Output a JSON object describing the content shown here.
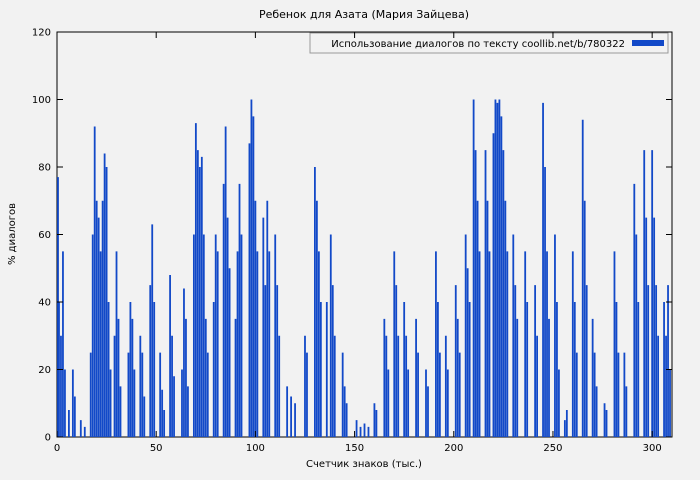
{
  "title": "Ребенок для Азата (Мария Зайцева)",
  "legend": {
    "label": "Использование диалогов по тексту coollib.net/b/780322"
  },
  "axes": {
    "x_label": "Счетчик знаков (тыс.)",
    "y_label": "% диалогов"
  },
  "colors": {
    "bar": "#1249c8",
    "plot_border": "#000000",
    "legend_border": "#999999",
    "background": "#f2f2f2"
  },
  "chart_data": {
    "type": "bar",
    "title": "Ребенок для Азата (Мария Зайцева)",
    "xlabel": "Счетчик знаков (тыс.)",
    "ylabel": "% диалогов",
    "xlim": [
      0,
      310
    ],
    "ylim": [
      0,
      120
    ],
    "x_ticks": [
      0,
      50,
      100,
      150,
      200,
      250,
      300
    ],
    "y_ticks": [
      0,
      20,
      40,
      60,
      80,
      100,
      120
    ],
    "grid": false,
    "legend_position": "top-right",
    "legend_entries": [
      "Использование диалогов по тексту coollib.net/b/780322"
    ],
    "bar_color": "#1249c8",
    "points": [
      [
        0.5,
        77
      ],
      [
        1,
        40
      ],
      [
        2,
        30
      ],
      [
        3,
        55
      ],
      [
        4,
        20
      ],
      [
        6,
        8
      ],
      [
        8,
        20
      ],
      [
        9,
        12
      ],
      [
        12,
        5
      ],
      [
        14,
        3
      ],
      [
        17,
        25
      ],
      [
        18,
        60
      ],
      [
        19,
        92
      ],
      [
        20,
        70
      ],
      [
        21,
        65
      ],
      [
        22,
        55
      ],
      [
        23,
        70
      ],
      [
        24,
        84
      ],
      [
        25,
        80
      ],
      [
        26,
        40
      ],
      [
        27,
        20
      ],
      [
        29,
        30
      ],
      [
        30,
        55
      ],
      [
        31,
        35
      ],
      [
        32,
        15
      ],
      [
        36,
        25
      ],
      [
        37,
        40
      ],
      [
        38,
        35
      ],
      [
        39,
        20
      ],
      [
        42,
        30
      ],
      [
        43,
        25
      ],
      [
        44,
        12
      ],
      [
        47,
        45
      ],
      [
        48,
        63
      ],
      [
        49,
        40
      ],
      [
        52,
        25
      ],
      [
        53,
        14
      ],
      [
        54,
        8
      ],
      [
        57,
        48
      ],
      [
        58,
        30
      ],
      [
        59,
        18
      ],
      [
        63,
        20
      ],
      [
        64,
        44
      ],
      [
        65,
        35
      ],
      [
        66,
        15
      ],
      [
        69,
        60
      ],
      [
        70,
        93
      ],
      [
        71,
        85
      ],
      [
        72,
        80
      ],
      [
        73,
        83
      ],
      [
        74,
        60
      ],
      [
        75,
        35
      ],
      [
        76,
        25
      ],
      [
        79,
        40
      ],
      [
        80,
        60
      ],
      [
        81,
        55
      ],
      [
        84,
        75
      ],
      [
        85,
        92
      ],
      [
        86,
        65
      ],
      [
        87,
        50
      ],
      [
        90,
        35
      ],
      [
        91,
        55
      ],
      [
        92,
        75
      ],
      [
        93,
        60
      ],
      [
        97,
        87
      ],
      [
        98,
        100
      ],
      [
        99,
        95
      ],
      [
        100,
        70
      ],
      [
        101,
        55
      ],
      [
        104,
        65
      ],
      [
        105,
        45
      ],
      [
        106,
        70
      ],
      [
        107,
        55
      ],
      [
        110,
        60
      ],
      [
        111,
        45
      ],
      [
        112,
        30
      ],
      [
        116,
        15
      ],
      [
        118,
        12
      ],
      [
        120,
        10
      ],
      [
        125,
        30
      ],
      [
        126,
        25
      ],
      [
        130,
        80
      ],
      [
        131,
        70
      ],
      [
        132,
        55
      ],
      [
        133,
        40
      ],
      [
        136,
        40
      ],
      [
        138,
        60
      ],
      [
        139,
        45
      ],
      [
        140,
        30
      ],
      [
        144,
        25
      ],
      [
        145,
        15
      ],
      [
        146,
        10
      ],
      [
        151,
        5
      ],
      [
        153,
        3
      ],
      [
        155,
        4
      ],
      [
        157,
        3
      ],
      [
        160,
        10
      ],
      [
        161,
        8
      ],
      [
        165,
        35
      ],
      [
        166,
        30
      ],
      [
        167,
        20
      ],
      [
        170,
        55
      ],
      [
        171,
        45
      ],
      [
        172,
        30
      ],
      [
        175,
        40
      ],
      [
        176,
        30
      ],
      [
        177,
        20
      ],
      [
        181,
        35
      ],
      [
        182,
        25
      ],
      [
        186,
        20
      ],
      [
        187,
        15
      ],
      [
        191,
        55
      ],
      [
        192,
        40
      ],
      [
        193,
        25
      ],
      [
        196,
        30
      ],
      [
        197,
        20
      ],
      [
        201,
        45
      ],
      [
        202,
        35
      ],
      [
        203,
        25
      ],
      [
        206,
        60
      ],
      [
        207,
        50
      ],
      [
        208,
        40
      ],
      [
        210,
        100
      ],
      [
        211,
        85
      ],
      [
        212,
        70
      ],
      [
        213,
        55
      ],
      [
        216,
        85
      ],
      [
        217,
        70
      ],
      [
        218,
        55
      ],
      [
        220,
        90
      ],
      [
        221,
        100
      ],
      [
        222,
        99
      ],
      [
        223,
        100
      ],
      [
        224,
        95
      ],
      [
        225,
        85
      ],
      [
        226,
        70
      ],
      [
        227,
        55
      ],
      [
        230,
        60
      ],
      [
        231,
        45
      ],
      [
        232,
        35
      ],
      [
        236,
        55
      ],
      [
        237,
        40
      ],
      [
        241,
        45
      ],
      [
        242,
        30
      ],
      [
        245,
        99
      ],
      [
        246,
        80
      ],
      [
        247,
        55
      ],
      [
        248,
        35
      ],
      [
        251,
        60
      ],
      [
        252,
        40
      ],
      [
        253,
        20
      ],
      [
        256,
        5
      ],
      [
        257,
        8
      ],
      [
        260,
        55
      ],
      [
        261,
        40
      ],
      [
        262,
        25
      ],
      [
        265,
        94
      ],
      [
        266,
        70
      ],
      [
        267,
        45
      ],
      [
        270,
        35
      ],
      [
        271,
        25
      ],
      [
        272,
        15
      ],
      [
        276,
        10
      ],
      [
        277,
        8
      ],
      [
        281,
        55
      ],
      [
        282,
        40
      ],
      [
        283,
        25
      ],
      [
        286,
        25
      ],
      [
        287,
        15
      ],
      [
        291,
        75
      ],
      [
        292,
        60
      ],
      [
        293,
        40
      ],
      [
        296,
        85
      ],
      [
        297,
        65
      ],
      [
        298,
        45
      ],
      [
        300,
        85
      ],
      [
        301,
        65
      ],
      [
        302,
        45
      ],
      [
        303,
        30
      ],
      [
        306,
        40
      ],
      [
        307,
        30
      ],
      [
        308,
        45
      ],
      [
        309,
        20
      ]
    ]
  }
}
